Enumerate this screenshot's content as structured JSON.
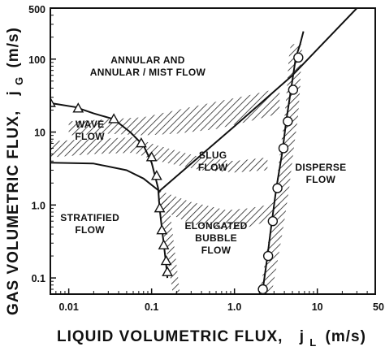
{
  "chart_data": {
    "type": "line",
    "x_scale": "log",
    "y_scale": "log",
    "xlim": [
      0.006,
      50
    ],
    "ylim": [
      0.06,
      500
    ],
    "x_ticks": [
      {
        "value": 0.01,
        "label": "0.01"
      },
      {
        "value": 0.1,
        "label": "0.1"
      },
      {
        "value": 1.0,
        "label": "1.0"
      },
      {
        "value": 10,
        "label": "10"
      },
      {
        "value": 50,
        "label": "50"
      }
    ],
    "y_ticks": [
      {
        "value": 0.1,
        "label": "0.1"
      },
      {
        "value": 1.0,
        "label": "1.0"
      },
      {
        "value": 10,
        "label": "10"
      },
      {
        "value": 100,
        "label": "100"
      },
      {
        "value": 500,
        "label": "500"
      }
    ],
    "xlabel": {
      "main": "LIQUID VOLUMETRIC FLUX,",
      "symbol": "j",
      "subscript": "L",
      "unit": "(m/s)"
    },
    "ylabel": {
      "main": "GAS VOLUMETRIC FLUX,",
      "symbol": "j",
      "subscript": "G",
      "unit": "(m/s)"
    },
    "grid": false,
    "regions": [
      {
        "lines": [
          "ANNULAR AND",
          "ANNULAR / MIST FLOW"
        ],
        "x": 0.09,
        "y": 80
      },
      {
        "lines": [
          "WAVE",
          "FLOW"
        ],
        "x": 0.018,
        "y": 10.5
      },
      {
        "lines": [
          "SLUG",
          "FLOW"
        ],
        "x": 0.55,
        "y": 4
      },
      {
        "lines": [
          "STRATIFIED",
          "FLOW"
        ],
        "x": 0.018,
        "y": 0.55
      },
      {
        "lines": [
          "ELONGATED",
          "BUBBLE",
          "FLOW"
        ],
        "x": 0.6,
        "y": 0.35
      },
      {
        "lines": [
          "DISPERSE",
          "FLOW"
        ],
        "x": 11,
        "y": 2.7
      }
    ],
    "series": [
      {
        "style": "triangle-markers",
        "x": [
          0.006,
          0.012,
          0.02,
          0.035,
          0.055,
          0.08,
          0.1,
          0.12
        ],
        "y": [
          25,
          22,
          18,
          15,
          10,
          6.5,
          3.8,
          1.7
        ]
      },
      {
        "style": "triangle-markers",
        "x": [
          0.12,
          0.125,
          0.13,
          0.135,
          0.14,
          0.145,
          0.15,
          0.155
        ],
        "y": [
          1.7,
          0.9,
          0.6,
          0.42,
          0.3,
          0.21,
          0.15,
          0.1
        ]
      },
      {
        "style": "plain",
        "x": [
          0.006,
          0.02,
          0.05,
          0.08,
          0.12
        ],
        "y": [
          3.8,
          3.7,
          3.0,
          2.3,
          1.6
        ]
      },
      {
        "style": "plain",
        "x": [
          0.12,
          1.0,
          5.0,
          30
        ],
        "y": [
          1.5,
          12,
          60,
          500
        ]
      },
      {
        "style": "circle-markers",
        "x": [
          2.2,
          2.5,
          2.8,
          3.2,
          3.8,
          4.2,
          4.8,
          5.5,
          6.2,
          6.8
        ],
        "y": [
          0.07,
          0.2,
          0.55,
          1.7,
          5.5,
          14,
          38,
          105,
          160,
          240
        ]
      }
    ],
    "circle_marker_points": [
      {
        "x": 2.2,
        "y": 0.07
      },
      {
        "x": 2.55,
        "y": 0.2
      },
      {
        "x": 2.9,
        "y": 0.6
      },
      {
        "x": 3.3,
        "y": 1.7
      },
      {
        "x": 3.9,
        "y": 6
      },
      {
        "x": 4.4,
        "y": 14
      },
      {
        "x": 5.1,
        "y": 38
      },
      {
        "x": 5.9,
        "y": 105
      }
    ],
    "triangle_marker_points": [
      {
        "x": 0.006,
        "y": 25
      },
      {
        "x": 0.013,
        "y": 21
      },
      {
        "x": 0.035,
        "y": 15
      },
      {
        "x": 0.075,
        "y": 7
      },
      {
        "x": 0.1,
        "y": 4.5
      },
      {
        "x": 0.115,
        "y": 2.5
      },
      {
        "x": 0.125,
        "y": 0.9
      },
      {
        "x": 0.133,
        "y": 0.45
      },
      {
        "x": 0.14,
        "y": 0.28
      },
      {
        "x": 0.15,
        "y": 0.17
      },
      {
        "x": 0.155,
        "y": 0.12
      }
    ],
    "transition_bands": [
      {
        "name": "wave-upper",
        "x": [
          0.01,
          0.03,
          0.08,
          0.2,
          0.6,
          1.5,
          3.5
        ],
        "y_low": [
          9,
          9.5,
          9,
          9.5,
          11,
          14,
          18
        ],
        "y_high": [
          14,
          15,
          16,
          20,
          26,
          32,
          40
        ]
      },
      {
        "name": "wave-lower",
        "x": [
          0.006,
          0.02,
          0.06,
          0.12,
          0.4,
          1.0,
          2.5
        ],
        "y_low": [
          4.5,
          5,
          5.2,
          4,
          3,
          2.8,
          3
        ],
        "y_high": [
          7.5,
          8,
          8.5,
          6.5,
          4.5,
          4,
          4.5
        ]
      },
      {
        "name": "slug-lower",
        "x": [
          0.12,
          0.3,
          0.8,
          1.5,
          2.5,
          3.5
        ],
        "y_low": [
          0.9,
          0.55,
          0.45,
          0.5,
          0.6,
          0.75
        ],
        "y_high": [
          1.6,
          1.1,
          0.85,
          0.9,
          1.0,
          1.2
        ]
      },
      {
        "name": "stratified-vertical",
        "x_low": [
          0.12,
          0.14,
          0.16,
          0.18
        ],
        "x_high": [
          0.16,
          0.18,
          0.2,
          0.22
        ],
        "y": [
          1.2,
          0.4,
          0.15,
          0.06
        ]
      },
      {
        "name": "disperse-vertical",
        "x_low": [
          2.0,
          2.4,
          2.8,
          3.2,
          3.6,
          4.0,
          4.3,
          4.5,
          4.8
        ],
        "x_high": [
          2.8,
          3.4,
          4.0,
          4.6,
          5.2,
          5.8,
          6.2,
          6.4,
          6.6
        ],
        "y": [
          0.06,
          0.2,
          0.6,
          1.8,
          6,
          15,
          40,
          100,
          160
        ]
      }
    ]
  }
}
